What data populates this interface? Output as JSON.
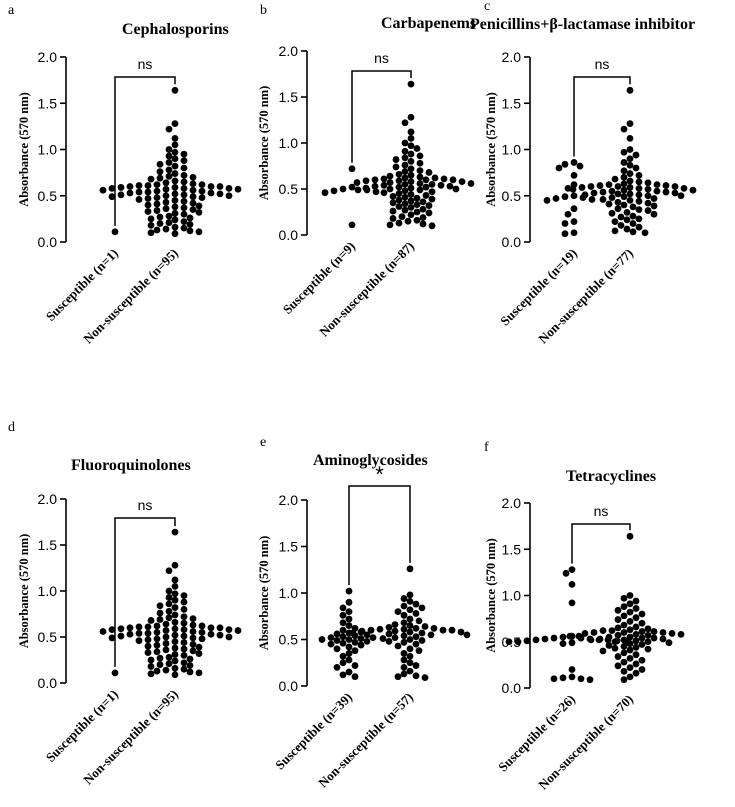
{
  "colors": {
    "points": "#000000",
    "axes": "#000000"
  },
  "chart_data": [
    {
      "panel": "a",
      "type": "scatter",
      "title": "Cephalosporins",
      "ylabel": "Absorbance (570 nm)",
      "ylim": [
        0,
        2.0
      ],
      "yticks": [
        "0.0",
        "0.5",
        "1.0",
        "1.5",
        "2.0"
      ],
      "categories": [
        "Susceptible (n=1)",
        "Non-susceptible (n=95)"
      ],
      "significance": "ns",
      "groups": [
        {
          "category": "Susceptible (n=1)",
          "values": [
            0.11
          ]
        },
        {
          "category": "Non-susceptible (n=95)",
          "values": [
            1.64,
            1.28,
            1.22,
            1.12,
            1.05,
            1.0,
            0.97,
            0.95,
            0.93,
            0.9,
            0.88,
            0.86,
            0.84,
            0.82,
            0.8,
            0.78,
            0.76,
            0.74,
            0.72,
            0.71,
            0.7,
            0.69,
            0.68,
            0.66,
            0.65,
            0.64,
            0.63,
            0.62,
            0.62,
            0.61,
            0.61,
            0.6,
            0.6,
            0.6,
            0.59,
            0.59,
            0.58,
            0.58,
            0.58,
            0.57,
            0.57,
            0.56,
            0.56,
            0.55,
            0.55,
            0.54,
            0.54,
            0.53,
            0.53,
            0.52,
            0.52,
            0.51,
            0.51,
            0.5,
            0.5,
            0.49,
            0.49,
            0.48,
            0.48,
            0.47,
            0.46,
            0.45,
            0.44,
            0.43,
            0.42,
            0.41,
            0.4,
            0.39,
            0.38,
            0.37,
            0.36,
            0.35,
            0.34,
            0.33,
            0.32,
            0.31,
            0.3,
            0.28,
            0.27,
            0.26,
            0.25,
            0.24,
            0.22,
            0.21,
            0.2,
            0.19,
            0.18,
            0.16,
            0.15,
            0.14,
            0.13,
            0.12,
            0.11,
            0.1,
            0.09
          ]
        }
      ]
    },
    {
      "panel": "b",
      "type": "scatter",
      "title": "Carbapenems",
      "ylabel": "Absorbance (570 nm)",
      "ylim": [
        0,
        2.0
      ],
      "yticks": [
        "0.0",
        "0.5",
        "1.0",
        "1.5",
        "2.0"
      ],
      "categories": [
        "Susceptible (n=9)",
        "Non-susceptible (n=87)"
      ],
      "significance": "ns",
      "groups": [
        {
          "category": "Susceptible (n=9)",
          "values": [
            0.72,
            0.52,
            0.5,
            0.49,
            0.49,
            0.48,
            0.47,
            0.46,
            0.11
          ]
        },
        {
          "category": "Non-susceptible (n=87)",
          "values": [
            1.64,
            1.28,
            1.22,
            1.12,
            1.05,
            1.0,
            0.97,
            0.94,
            0.91,
            0.88,
            0.86,
            0.84,
            0.82,
            0.8,
            0.78,
            0.76,
            0.74,
            0.72,
            0.7,
            0.69,
            0.68,
            0.66,
            0.65,
            0.64,
            0.63,
            0.62,
            0.62,
            0.61,
            0.61,
            0.6,
            0.6,
            0.6,
            0.59,
            0.59,
            0.58,
            0.58,
            0.57,
            0.57,
            0.56,
            0.56,
            0.55,
            0.55,
            0.54,
            0.54,
            0.53,
            0.53,
            0.52,
            0.52,
            0.51,
            0.51,
            0.5,
            0.5,
            0.49,
            0.48,
            0.47,
            0.46,
            0.45,
            0.44,
            0.43,
            0.42,
            0.41,
            0.4,
            0.39,
            0.38,
            0.37,
            0.36,
            0.35,
            0.34,
            0.33,
            0.32,
            0.31,
            0.3,
            0.28,
            0.27,
            0.26,
            0.25,
            0.24,
            0.22,
            0.2,
            0.19,
            0.18,
            0.16,
            0.15,
            0.13,
            0.12,
            0.11,
            0.1
          ]
        }
      ]
    },
    {
      "panel": "c",
      "type": "scatter",
      "title": "Penicillins+β-lactamase inhibitor",
      "ylabel": "Absorbance (570 nm)",
      "ylim": [
        0,
        2.0
      ],
      "yticks": [
        "0.0",
        "0.5",
        "1.0",
        "1.5",
        "2.0"
      ],
      "categories": [
        "Susceptible (n=19)",
        "Non-susceptible (n=77)"
      ],
      "significance": "ns",
      "groups": [
        {
          "category": "Susceptible (n=19)",
          "values": [
            0.86,
            0.84,
            0.82,
            0.8,
            0.72,
            0.62,
            0.58,
            0.5,
            0.49,
            0.48,
            0.47,
            0.46,
            0.45,
            0.36,
            0.3,
            0.22,
            0.2,
            0.1,
            0.09
          ]
        },
        {
          "category": "Non-susceptible (n=77)",
          "values": [
            1.64,
            1.28,
            1.22,
            1.12,
            1.0,
            0.97,
            0.94,
            0.9,
            0.86,
            0.83,
            0.8,
            0.77,
            0.74,
            0.72,
            0.7,
            0.68,
            0.66,
            0.65,
            0.64,
            0.63,
            0.62,
            0.62,
            0.61,
            0.61,
            0.6,
            0.6,
            0.6,
            0.59,
            0.59,
            0.58,
            0.58,
            0.57,
            0.57,
            0.56,
            0.56,
            0.55,
            0.55,
            0.54,
            0.54,
            0.53,
            0.53,
            0.52,
            0.52,
            0.51,
            0.51,
            0.5,
            0.5,
            0.49,
            0.48,
            0.47,
            0.46,
            0.45,
            0.44,
            0.43,
            0.42,
            0.41,
            0.4,
            0.39,
            0.38,
            0.36,
            0.35,
            0.34,
            0.32,
            0.31,
            0.3,
            0.28,
            0.27,
            0.25,
            0.24,
            0.22,
            0.2,
            0.18,
            0.16,
            0.14,
            0.12,
            0.11,
            0.1
          ]
        }
      ]
    },
    {
      "panel": "d",
      "type": "scatter",
      "title": "Fluoroquinolones",
      "ylabel": "Absorbance (570 nm)",
      "ylim": [
        0,
        2.0
      ],
      "yticks": [
        "0.0",
        "0.5",
        "1.0",
        "1.5",
        "2.0"
      ],
      "categories": [
        "Susceptible (n=1)",
        "Non-susceptible (n=95)"
      ],
      "significance": "ns",
      "groups": [
        {
          "category": "Susceptible (n=1)",
          "values": [
            0.11
          ]
        },
        {
          "category": "Non-susceptible (n=95)",
          "values": [
            1.64,
            1.28,
            1.22,
            1.12,
            1.05,
            1.0,
            0.97,
            0.95,
            0.93,
            0.9,
            0.88,
            0.86,
            0.84,
            0.82,
            0.8,
            0.78,
            0.76,
            0.74,
            0.72,
            0.71,
            0.7,
            0.69,
            0.68,
            0.66,
            0.65,
            0.64,
            0.63,
            0.62,
            0.62,
            0.61,
            0.61,
            0.6,
            0.6,
            0.6,
            0.59,
            0.59,
            0.58,
            0.58,
            0.58,
            0.57,
            0.57,
            0.56,
            0.56,
            0.55,
            0.55,
            0.54,
            0.54,
            0.53,
            0.53,
            0.52,
            0.52,
            0.51,
            0.51,
            0.5,
            0.5,
            0.49,
            0.49,
            0.48,
            0.48,
            0.47,
            0.46,
            0.45,
            0.44,
            0.43,
            0.42,
            0.41,
            0.4,
            0.39,
            0.38,
            0.37,
            0.36,
            0.35,
            0.34,
            0.33,
            0.32,
            0.31,
            0.3,
            0.28,
            0.27,
            0.26,
            0.25,
            0.24,
            0.22,
            0.21,
            0.2,
            0.19,
            0.18,
            0.16,
            0.15,
            0.14,
            0.13,
            0.12,
            0.11,
            0.1,
            0.09
          ]
        }
      ]
    },
    {
      "panel": "e",
      "type": "scatter",
      "title": "Aminoglycosides",
      "ylabel": "Absorbance (570 nm)",
      "ylim": [
        0,
        2.0
      ],
      "yticks": [
        "0.0",
        "0.5",
        "1.0",
        "1.5",
        "2.0"
      ],
      "categories": [
        "Susceptible (n=39)",
        "Non-susceptible (n=57)"
      ],
      "significance": "*",
      "groups": [
        {
          "category": "Susceptible (n=39)",
          "values": [
            1.02,
            0.9,
            0.84,
            0.8,
            0.76,
            0.72,
            0.68,
            0.65,
            0.62,
            0.6,
            0.58,
            0.57,
            0.56,
            0.55,
            0.54,
            0.53,
            0.52,
            0.52,
            0.51,
            0.5,
            0.5,
            0.49,
            0.48,
            0.47,
            0.46,
            0.45,
            0.44,
            0.42,
            0.4,
            0.38,
            0.35,
            0.32,
            0.28,
            0.25,
            0.22,
            0.2,
            0.15,
            0.12,
            0.1
          ]
        },
        {
          "category": "Non-susceptible (n=57)",
          "values": [
            1.26,
            0.98,
            0.94,
            0.91,
            0.88,
            0.86,
            0.84,
            0.82,
            0.8,
            0.78,
            0.76,
            0.72,
            0.7,
            0.68,
            0.66,
            0.65,
            0.64,
            0.63,
            0.62,
            0.62,
            0.61,
            0.61,
            0.6,
            0.6,
            0.6,
            0.59,
            0.59,
            0.58,
            0.58,
            0.57,
            0.57,
            0.56,
            0.55,
            0.55,
            0.54,
            0.53,
            0.52,
            0.51,
            0.5,
            0.49,
            0.48,
            0.47,
            0.45,
            0.43,
            0.4,
            0.38,
            0.35,
            0.32,
            0.28,
            0.25,
            0.22,
            0.2,
            0.16,
            0.13,
            0.11,
            0.1,
            0.09
          ]
        }
      ]
    },
    {
      "panel": "f",
      "type": "scatter",
      "title": "Tetracyclines",
      "ylabel": "Absorbance (570 nm)",
      "ylim": [
        0,
        2.0
      ],
      "yticks": [
        "0.0",
        "0.5",
        "1.0",
        "1.5",
        "2.0"
      ],
      "categories": [
        "Susceptible (n=26)",
        "Non-susceptible (n=70)"
      ],
      "significance": "ns",
      "groups": [
        {
          "category": "Susceptible (n=26)",
          "values": [
            1.28,
            1.24,
            1.12,
            0.92,
            0.56,
            0.55,
            0.54,
            0.54,
            0.53,
            0.53,
            0.52,
            0.52,
            0.52,
            0.51,
            0.51,
            0.5,
            0.5,
            0.5,
            0.49,
            0.48,
            0.2,
            0.12,
            0.11,
            0.1,
            0.1,
            0.09
          ]
        },
        {
          "category": "Non-susceptible (n=70)",
          "values": [
            1.64,
            1.0,
            0.97,
            0.94,
            0.91,
            0.88,
            0.86,
            0.84,
            0.82,
            0.8,
            0.78,
            0.76,
            0.74,
            0.72,
            0.7,
            0.68,
            0.66,
            0.65,
            0.64,
            0.63,
            0.62,
            0.62,
            0.61,
            0.61,
            0.6,
            0.6,
            0.6,
            0.59,
            0.59,
            0.58,
            0.58,
            0.57,
            0.57,
            0.56,
            0.56,
            0.55,
            0.55,
            0.54,
            0.54,
            0.53,
            0.53,
            0.52,
            0.52,
            0.51,
            0.5,
            0.5,
            0.49,
            0.48,
            0.47,
            0.46,
            0.45,
            0.44,
            0.43,
            0.42,
            0.41,
            0.4,
            0.38,
            0.36,
            0.34,
            0.32,
            0.3,
            0.28,
            0.26,
            0.24,
            0.22,
            0.2,
            0.18,
            0.16,
            0.12,
            0.09
          ]
        }
      ]
    }
  ]
}
